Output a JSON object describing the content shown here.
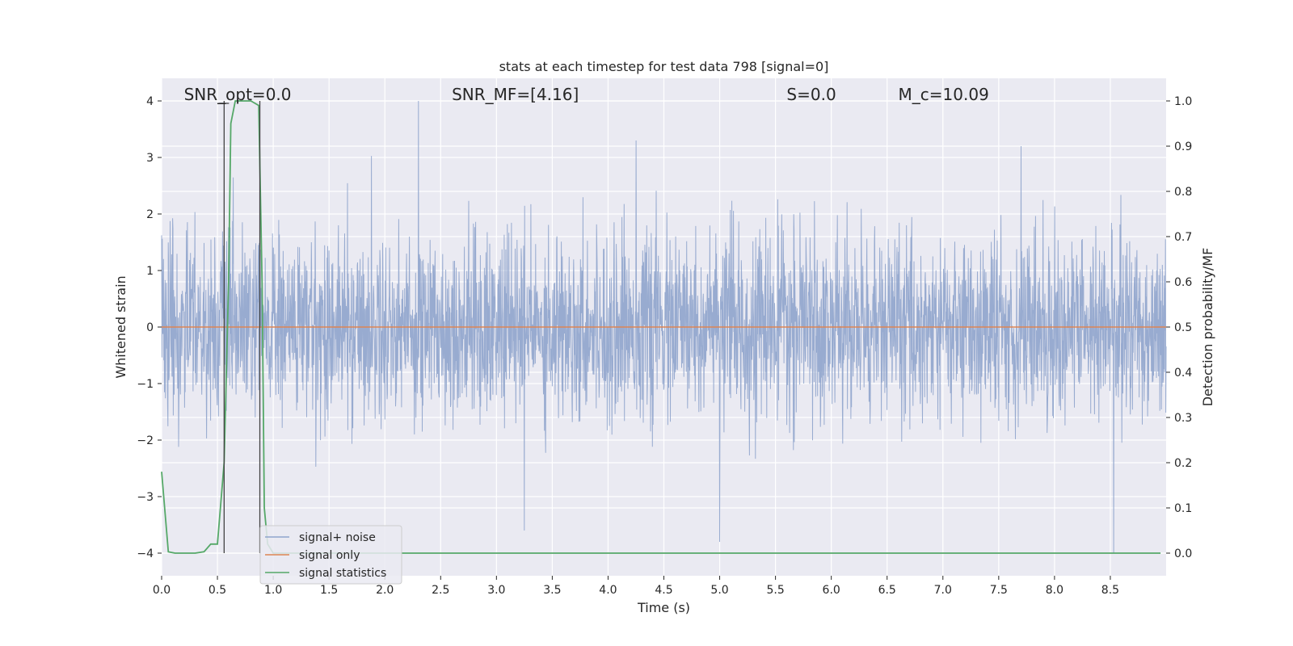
{
  "chart_data": {
    "type": "line",
    "title": "stats at each timestep for test data 798 [signal=0]",
    "xlabel": "Time (s)",
    "ylabel_left": "Whitened strain",
    "ylabel_right": "Detection probability/MF",
    "xlim": [
      0.0,
      9.0
    ],
    "ylim_left": [
      -4.4,
      4.4
    ],
    "ylim_right": [
      -0.05,
      1.05
    ],
    "x_ticks": [
      0.0,
      0.5,
      1.0,
      1.5,
      2.0,
      2.5,
      3.0,
      3.5,
      4.0,
      4.5,
      5.0,
      5.5,
      6.0,
      6.5,
      7.0,
      7.5,
      8.0,
      8.5
    ],
    "x_tick_labels": [
      "0.0",
      "0.5",
      "1.0",
      "1.5",
      "2.0",
      "2.5",
      "3.0",
      "3.5",
      "4.0",
      "4.5",
      "5.0",
      "5.5",
      "6.0",
      "6.5",
      "7.0",
      "7.5",
      "8.0",
      "8.5"
    ],
    "y_left_ticks": [
      -4,
      -3,
      -2,
      -1,
      0,
      1,
      2,
      3,
      4
    ],
    "y_left_tick_labels": [
      "−4",
      "−3",
      "−2",
      "−1",
      "0",
      "1",
      "2",
      "3",
      "4"
    ],
    "y_right_ticks": [
      0.0,
      0.1,
      0.2,
      0.3,
      0.4,
      0.5,
      0.6,
      0.7,
      0.8,
      0.9,
      1.0
    ],
    "y_right_tick_labels": [
      "0.0",
      "0.1",
      "0.2",
      "0.3",
      "0.4",
      "0.5",
      "0.6",
      "0.7",
      "0.8",
      "0.9",
      "1.0"
    ],
    "grid": true,
    "legend_position": "lower-left",
    "annotations": [
      {
        "id": "snr-opt",
        "text": "SNR_opt=0.0",
        "x": 0.2
      },
      {
        "id": "snr-mf",
        "text": "SNR_MF=[4.16]",
        "x": 2.6
      },
      {
        "id": "s-value",
        "text": "S=0.0",
        "x": 5.6
      },
      {
        "id": "mc-value",
        "text": "M_c=10.09",
        "x": 6.6
      }
    ],
    "series": [
      {
        "name": "signal+ noise",
        "axis": "left",
        "color": "#8fa4cc",
        "kind": "noise",
        "noise_sigma": 0.8,
        "x_range": [
          0.0,
          9.0
        ],
        "notable_peaks": [
          {
            "x": 2.3,
            "y": 4.0
          },
          {
            "x": 4.25,
            "y": 3.3
          },
          {
            "x": 7.7,
            "y": 3.2
          },
          {
            "x": 8.53,
            "y": -4.0
          },
          {
            "x": 5.0,
            "y": -3.8
          },
          {
            "x": 3.25,
            "y": -3.6
          }
        ]
      },
      {
        "name": "signal only",
        "axis": "left",
        "color": "#dd8452",
        "x": [
          0.0,
          9.0
        ],
        "y": [
          0.0,
          0.0
        ]
      },
      {
        "name": "signal statistics",
        "axis": "right",
        "color": "#55a868",
        "x": [
          0.0,
          0.06,
          0.12,
          0.2,
          0.3,
          0.38,
          0.44,
          0.5,
          0.56,
          0.6,
          0.62,
          0.66,
          0.7,
          0.8,
          0.87,
          0.9,
          0.92,
          0.95,
          1.0,
          2.0,
          4.0,
          6.0,
          8.0,
          8.95
        ],
        "y": [
          0.18,
          0.003,
          0.0,
          0.0,
          0.0,
          0.003,
          0.02,
          0.02,
          0.2,
          0.6,
          0.95,
          1.0,
          1.0,
          1.0,
          0.99,
          0.6,
          0.1,
          0.02,
          0.0,
          0.0,
          0.0,
          0.0,
          0.0,
          0.0
        ]
      }
    ],
    "vertical_markers": [
      0.56,
      0.88
    ]
  }
}
